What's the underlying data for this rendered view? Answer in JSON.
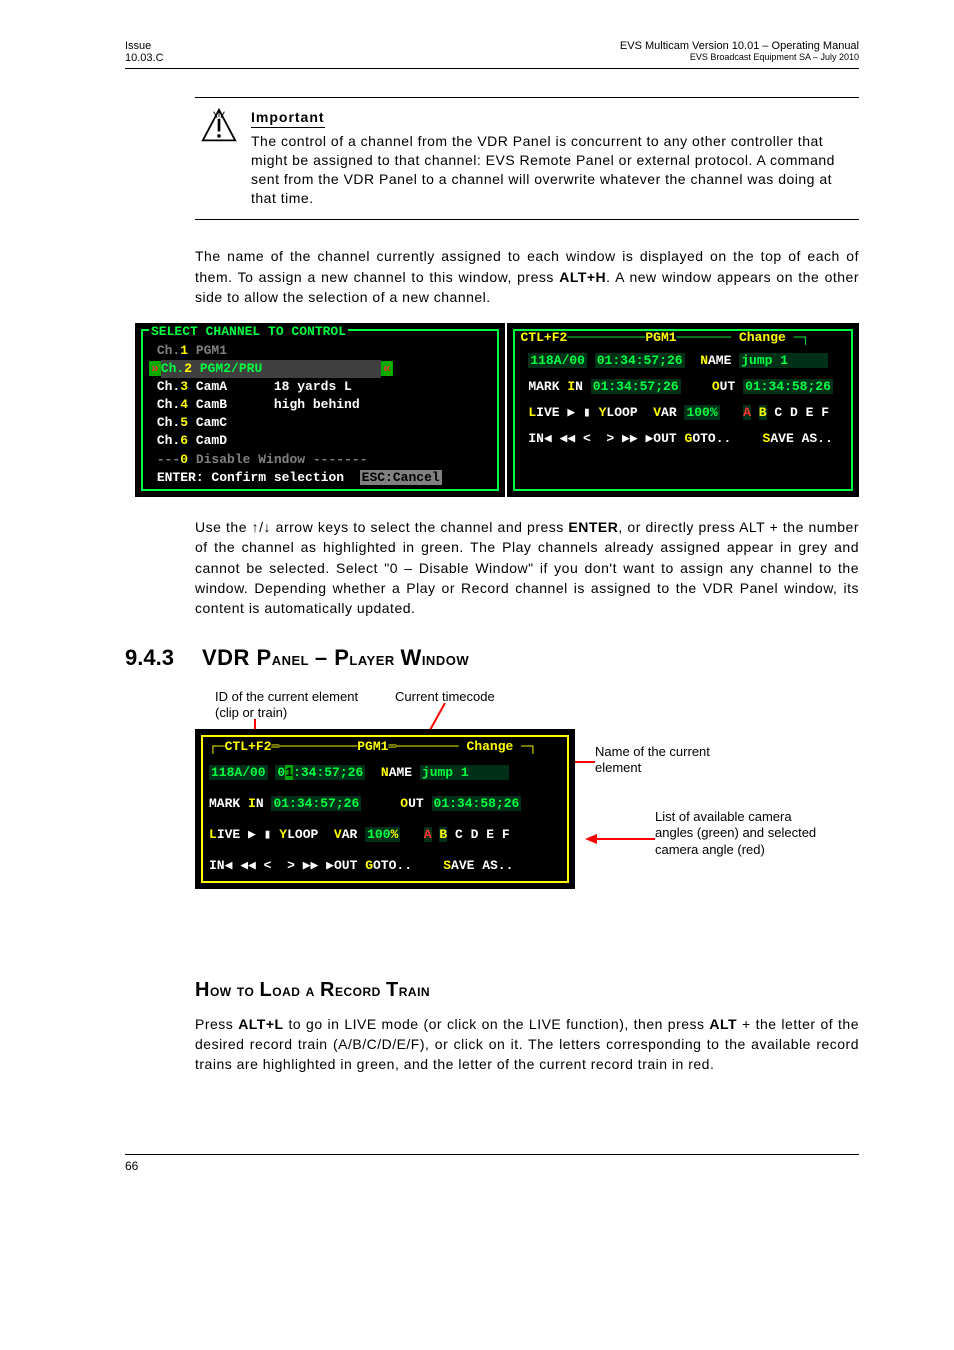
{
  "header": {
    "left_line1": "Issue",
    "left_line2": "10.03.C",
    "right_line1": "EVS Multicam Version 10.01 – Operating Manual",
    "right_line2": "EVS Broadcast Equipment SA – July 2010"
  },
  "important": {
    "heading": "Important",
    "body": "The control of a channel from the VDR Panel is concurrent to any other controller that might be assigned to that channel: EVS Remote Panel or external protocol. A command sent from the VDR Panel to a channel will overwrite whatever the channel was doing at that time."
  },
  "para1_pre": "The name of the channel currently assigned to each window is displayed on the top of each of them. To assign a new channel to this window, press ",
  "para1_bold": "ALT+H",
  "para1_post": ". A new window appears on the other side to allow the selection of a new channel.",
  "term_left": {
    "title": " SELECT CHANNEL TO CONTROL ",
    "rows": [
      {
        "pre": "Ch.",
        "hot": "1",
        "rest": " PGM1",
        "grey": true
      },
      {
        "pre": "Ch.",
        "hot": "2",
        "rest": " PGM2/PRU",
        "sel": true
      },
      {
        "pre": "Ch.",
        "hot": "3",
        "rest": " CamA      18 yards L"
      },
      {
        "pre": "Ch.",
        "hot": "4",
        "rest": " CamB      high behind"
      },
      {
        "pre": "Ch.",
        "hot": "5",
        "rest": " CamC"
      },
      {
        "pre": "Ch.",
        "hot": "6",
        "rest": " CamD"
      }
    ],
    "disable": "---0 Disable Window -------",
    "footer_a": "ENTER: Confirm selection",
    "footer_b": "ESC:Cancel"
  },
  "term_right": {
    "tag_left": "CTL+F2",
    "tag_mid": "PGM1",
    "tag_right": "Change",
    "tag_right_hotpos": 1,
    "clip_id": "118A/00",
    "timecode": "01:34:57;26",
    "name_label": "NAME",
    "name_val": "jump 1",
    "mark_in_label": "MARK IN",
    "mark_in_val": "01:34:57;26",
    "out_label": "OUT",
    "out_val": "01:34:58;26",
    "live": "LIVE",
    "yloop": "YLOOP",
    "var_label": "VAR",
    "var_val": "100%",
    "cams": [
      "A",
      "B",
      "C",
      "D",
      "E",
      "F"
    ],
    "cams_avail": [
      0,
      1
    ],
    "cams_selected": 0,
    "nav": "IN◀ ◀◀ <  > ▶▶ ▶OUT GOTO..",
    "save": "SAVE AS.."
  },
  "para2_a": "Use the ↑/↓ arrow keys to select the channel and press ",
  "para2_enter": "ENTER",
  "para2_b": ", or directly press ALT + the number of the channel as highlighted in green. The Play channels already assigned appear in grey and cannot be selected. Select \"0 – Disable Window\" if you don't want to assign any channel to the window. Depending whether a Play or Record channel is assigned to the VDR Panel window, its content is automatically updated.",
  "section": {
    "num": "9.4.3",
    "title": "VDR Panel – Player Window"
  },
  "annotations": {
    "top_left": "ID of the current element (clip or train)",
    "top_right": "Current timecode",
    "right_1": "Name of the current element",
    "right_2": "List of available camera angles (green) and selected camera angle (red)"
  },
  "subhead": "How to Load a Record Train",
  "para3_a": "Press ",
  "para3_b1": "ALT+L",
  "para3_c": " to go in LIVE mode (or click on the LIVE function), then press ",
  "para3_b2": "ALT",
  "para3_d": " + the letter of the desired record train (A/B/C/D/E/F), or click on it. The letters corresponding to the available record trains are highlighted in green, and the letter of the current record train in red.",
  "footer_page": "66",
  "colors": {
    "term_bg": "#000000",
    "term_green": "#00ff41",
    "term_yellow": "#ffff00",
    "term_red": "#ff3333",
    "term_white": "#ffffff",
    "term_grey": "#808080",
    "field_bg": "#003018",
    "anno_arrow": "#ff0000"
  }
}
